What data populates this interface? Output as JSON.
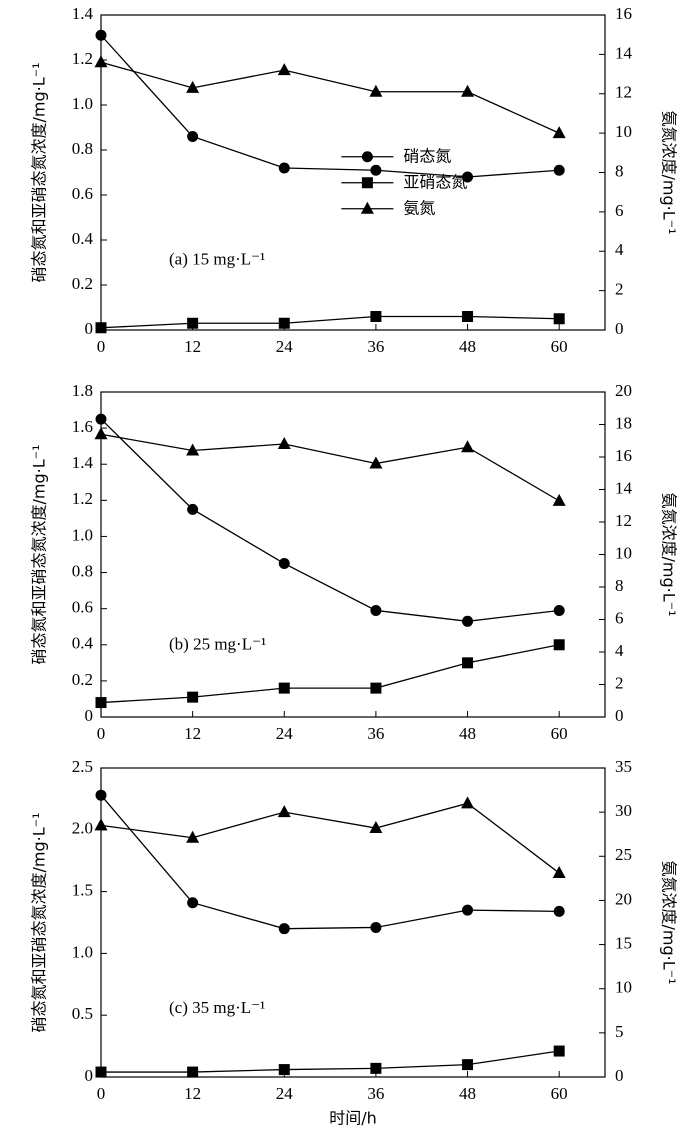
{
  "chart_data": [
    {
      "type": "line",
      "annotation": "(a) 15 mg·L⁻¹",
      "ylabel": "硝态氮和亚硝态氮浓度/mg·L⁻¹",
      "y2label": "氨氮浓度/mg·L⁻¹",
      "x": [
        0,
        12,
        24,
        36,
        48,
        60
      ],
      "xlim": [
        0,
        66
      ],
      "xticks": [
        0,
        12,
        24,
        36,
        48,
        60
      ],
      "ylim": [
        0,
        1.4
      ],
      "yticks": [
        0,
        0.2,
        0.4,
        0.6,
        0.8,
        {
          "value": 1,
          "label": "1.0"
        },
        1.2,
        1.4
      ],
      "y2lim": [
        0,
        16
      ],
      "y2ticks": [
        0,
        2,
        4,
        6,
        8,
        10,
        12,
        14,
        16
      ],
      "legend": "center",
      "series": [
        {
          "name": "硝态氮",
          "marker": "circle",
          "color": "#000000",
          "values": [
            1.31,
            0.86,
            0.72,
            0.71,
            0.68,
            0.71
          ]
        },
        {
          "name": "亚硝态氮",
          "marker": "square",
          "color": "#000000",
          "values": [
            0.01,
            0.03,
            0.03,
            0.06,
            0.06,
            0.05
          ]
        },
        {
          "name": "氨氮",
          "marker": "triangle",
          "color": "#000000",
          "axis": "y2",
          "values": [
            13.6,
            12.3,
            13.2,
            12.1,
            12.1,
            10.0
          ]
        }
      ]
    },
    {
      "type": "line",
      "annotation": "(b) 25 mg·L⁻¹",
      "ylabel": "硝态氮和亚硝态氮浓度/mg·L⁻¹",
      "y2label": "氨氮浓度/mg·L⁻¹",
      "x": [
        0,
        12,
        24,
        36,
        48,
        60
      ],
      "xlim": [
        0,
        66
      ],
      "xticks": [
        0,
        12,
        24,
        36,
        48,
        60
      ],
      "ylim": [
        0,
        1.8
      ],
      "yticks": [
        0,
        0.2,
        0.4,
        0.6,
        0.8,
        {
          "value": 1,
          "label": "1.0"
        },
        1.2,
        1.4,
        1.6,
        1.8
      ],
      "y2lim": [
        0,
        20
      ],
      "y2ticks": [
        0,
        2,
        4,
        6,
        8,
        10,
        12,
        14,
        16,
        18,
        20
      ],
      "series": [
        {
          "marker": "circle",
          "color": "#000000",
          "values": [
            1.65,
            1.15,
            0.85,
            0.59,
            0.53,
            0.59
          ]
        },
        {
          "marker": "square",
          "color": "#000000",
          "values": [
            0.08,
            0.11,
            0.16,
            0.16,
            0.3,
            0.4
          ]
        },
        {
          "marker": "triangle",
          "color": "#000000",
          "axis": "y2",
          "values": [
            17.4,
            16.4,
            16.8,
            15.6,
            16.6,
            13.3
          ]
        }
      ]
    },
    {
      "type": "line",
      "annotation": "(c) 35 mg·L⁻¹",
      "ylabel": "硝态氮和亚硝态氮浓度/mg·L⁻¹",
      "y2label": "氨氮浓度/mg·L⁻¹",
      "xlabel": "时间/h",
      "x": [
        0,
        12,
        24,
        36,
        48,
        60
      ],
      "xlim": [
        0,
        66
      ],
      "xticks": [
        0,
        12,
        24,
        36,
        48,
        60
      ],
      "ylim": [
        0,
        2.5
      ],
      "yticks": [
        0,
        0.5,
        {
          "value": 1,
          "label": "1.0"
        },
        1.5,
        {
          "value": 2,
          "label": "2.0"
        },
        2.5
      ],
      "y2lim": [
        0,
        35
      ],
      "y2ticks": [
        0,
        5,
        10,
        15,
        20,
        25,
        30,
        35
      ],
      "series": [
        {
          "marker": "circle",
          "color": "#000000",
          "values": [
            2.28,
            1.41,
            1.2,
            1.21,
            1.35,
            1.34
          ]
        },
        {
          "marker": "square",
          "color": "#000000",
          "values": [
            0.04,
            0.04,
            0.06,
            0.07,
            0.1,
            0.21
          ]
        },
        {
          "marker": "triangle",
          "color": "#000000",
          "axis": "y2",
          "values": [
            28.5,
            27.1,
            30.0,
            28.2,
            31.0,
            23.1
          ]
        }
      ]
    }
  ]
}
